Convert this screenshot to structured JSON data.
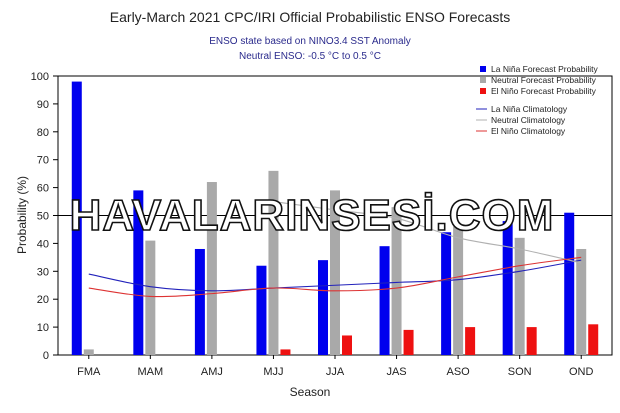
{
  "chart_data": {
    "type": "bar",
    "title": "Early-March 2021 CPC/IRI Official Probabilistic ENSO Forecasts",
    "subtitle_lines": [
      "ENSO state based on NINO3.4 SST Anomaly",
      "Neutral ENSO: -0.5 °C to 0.5 °C"
    ],
    "xlabel": "Season",
    "ylabel": "Probability (%)",
    "ylim": [
      0,
      100
    ],
    "yticks": [
      0,
      10,
      20,
      30,
      40,
      50,
      60,
      70,
      80,
      90,
      100
    ],
    "reference_line": 50,
    "categories": [
      "FMA",
      "MAM",
      "AMJ",
      "MJJ",
      "JJA",
      "JAS",
      "ASO",
      "SON",
      "OND"
    ],
    "series": [
      {
        "name": "La Niña Forecast Probability",
        "color": "#0000ee",
        "values": [
          98,
          59,
          38,
          32,
          34,
          39,
          44,
          48,
          51
        ]
      },
      {
        "name": "Neutral Forecast Probability",
        "color": "#a9a9a9",
        "values": [
          2,
          41,
          62,
          66,
          59,
          53,
          46,
          42,
          38
        ]
      },
      {
        "name": "El Niño Forecast Probability",
        "color": "#ee1111",
        "values": [
          0,
          0,
          0,
          2,
          7,
          9,
          10,
          10,
          11
        ]
      }
    ],
    "climatology": [
      {
        "name": "La Niña Climatology",
        "color": "#2222bb",
        "values": [
          29,
          24.5,
          23,
          24,
          25,
          26,
          27,
          30,
          34
        ]
      },
      {
        "name": "Neutral Climatology",
        "color": "#b0b0b0",
        "values": [
          null,
          null,
          null,
          55,
          52,
          49,
          42,
          38,
          33
        ]
      },
      {
        "name": "El Niño Climatology",
        "color": "#dd3333",
        "values": [
          24,
          21,
          22,
          24,
          23,
          24,
          28,
          32,
          35
        ]
      }
    ],
    "legend_position": "top-right",
    "grid": false
  },
  "watermark": "HAVALARINSESİ.COM"
}
